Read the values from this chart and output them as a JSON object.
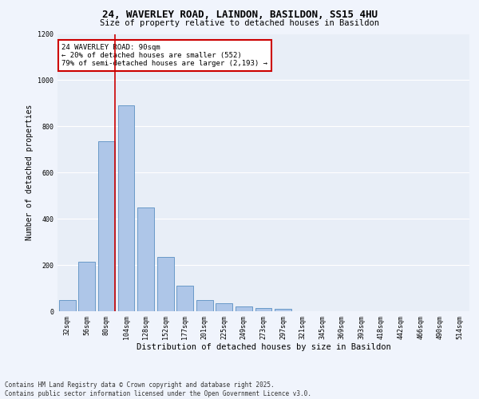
{
  "title_line1": "24, WAVERLEY ROAD, LAINDON, BASILDON, SS15 4HU",
  "title_line2": "Size of property relative to detached houses in Basildon",
  "xlabel": "Distribution of detached houses by size in Basildon",
  "ylabel": "Number of detached properties",
  "categories": [
    "32sqm",
    "56sqm",
    "80sqm",
    "104sqm",
    "128sqm",
    "152sqm",
    "177sqm",
    "201sqm",
    "225sqm",
    "249sqm",
    "273sqm",
    "297sqm",
    "321sqm",
    "345sqm",
    "369sqm",
    "393sqm",
    "418sqm",
    "442sqm",
    "466sqm",
    "490sqm",
    "514sqm"
  ],
  "values": [
    50,
    215,
    735,
    890,
    450,
    235,
    110,
    50,
    35,
    20,
    15,
    10,
    0,
    0,
    0,
    0,
    0,
    0,
    0,
    0,
    0
  ],
  "bar_color": "#aec6e8",
  "bar_edge_color": "#5a8fc2",
  "vline_color": "#cc0000",
  "annotation_text": "24 WAVERLEY ROAD: 90sqm\n← 20% of detached houses are smaller (552)\n79% of semi-detached houses are larger (2,193) →",
  "annotation_box_color": "#cc0000",
  "ylim": [
    0,
    1200
  ],
  "yticks": [
    0,
    200,
    400,
    600,
    800,
    1000,
    1200
  ],
  "fig_bg_color": "#f0f4fc",
  "plot_bg_color": "#e8eef7",
  "grid_color": "#ffffff",
  "footer_line1": "Contains HM Land Registry data © Crown copyright and database right 2025.",
  "footer_line2": "Contains public sector information licensed under the Open Government Licence v3.0.",
  "title_fontsize": 9,
  "subtitle_fontsize": 7.5,
  "ylabel_fontsize": 7,
  "xlabel_fontsize": 7.5,
  "tick_fontsize": 6,
  "annotation_fontsize": 6.5,
  "footer_fontsize": 5.5
}
